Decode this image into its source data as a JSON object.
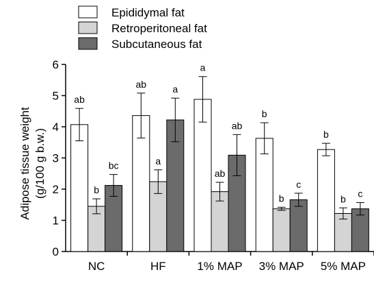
{
  "chart_data": {
    "type": "bar",
    "ylabel_lines": [
      "Adipose tissue weight",
      "(g/100 g b.w.)"
    ],
    "ylim": [
      0,
      6
    ],
    "yticks": [
      0,
      1,
      2,
      3,
      4,
      5,
      6
    ],
    "categories": [
      "NC",
      "HF",
      "1% MAP",
      "3% MAP",
      "5% MAP"
    ],
    "legend_position": "top-left",
    "series": [
      {
        "name": "Epididymal fat",
        "color": "#ffffff",
        "values": [
          4.07,
          4.36,
          4.88,
          3.63,
          3.27
        ],
        "errors": [
          0.52,
          0.72,
          0.73,
          0.5,
          0.2
        ],
        "labels": [
          "ab",
          "ab",
          "a",
          "b",
          "b"
        ]
      },
      {
        "name": "Retroperitoneal fat",
        "color": "#d4d4d4",
        "values": [
          1.45,
          2.24,
          1.92,
          1.37,
          1.22
        ],
        "errors": [
          0.24,
          0.38,
          0.3,
          0.05,
          0.18
        ],
        "labels": [
          "b",
          "a",
          "ab",
          "b",
          "b"
        ]
      },
      {
        "name": "Subcutaneous fat",
        "color": "#6b6b6b",
        "values": [
          2.12,
          4.22,
          3.09,
          1.66,
          1.37
        ],
        "errors": [
          0.35,
          0.7,
          0.66,
          0.21,
          0.2
        ],
        "labels": [
          "bc",
          "a",
          "ab",
          "c",
          "c"
        ]
      }
    ]
  }
}
